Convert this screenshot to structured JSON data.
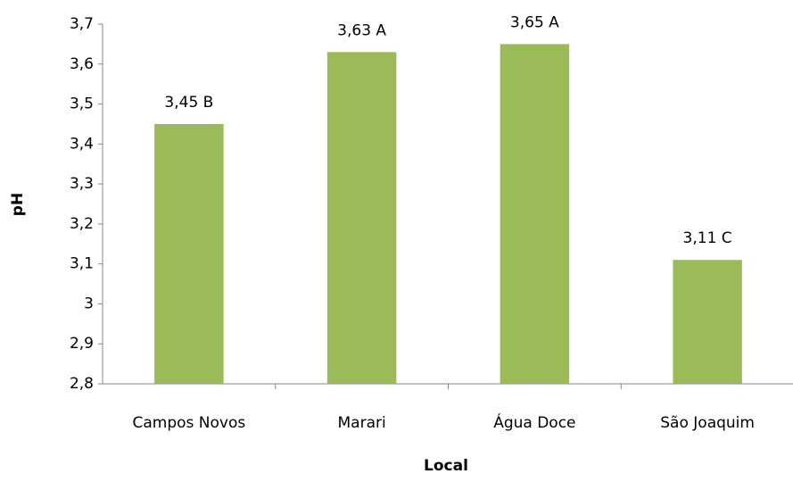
{
  "chart_data": {
    "type": "bar",
    "x_label": "Local",
    "y_label": "pH",
    "categories": [
      "Campos Novos",
      "Marari",
      "Água Doce",
      "São Joaquim"
    ],
    "values": [
      3.45,
      3.63,
      3.65,
      3.11
    ],
    "value_labels": [
      "3,45 B",
      "3,63 A",
      "3,65 A",
      "3,11 C"
    ],
    "color": "#9bbb59",
    "ylim": [
      2.8,
      3.7
    ],
    "yticks": [
      {
        "value": 2.8,
        "label": "2,8"
      },
      {
        "value": 2.9,
        "label": "2,9"
      },
      3,
      {
        "value": 3.1,
        "label": "3,1"
      },
      {
        "value": 3.2,
        "label": "3,2"
      },
      {
        "value": 3.3,
        "label": "3,3"
      },
      {
        "value": 3.4,
        "label": "3,4"
      },
      {
        "value": 3.5,
        "label": "3,5"
      },
      {
        "value": 3.6,
        "label": "3,6"
      },
      {
        "value": 3.7,
        "label": "3,7"
      }
    ],
    "grid": false
  }
}
